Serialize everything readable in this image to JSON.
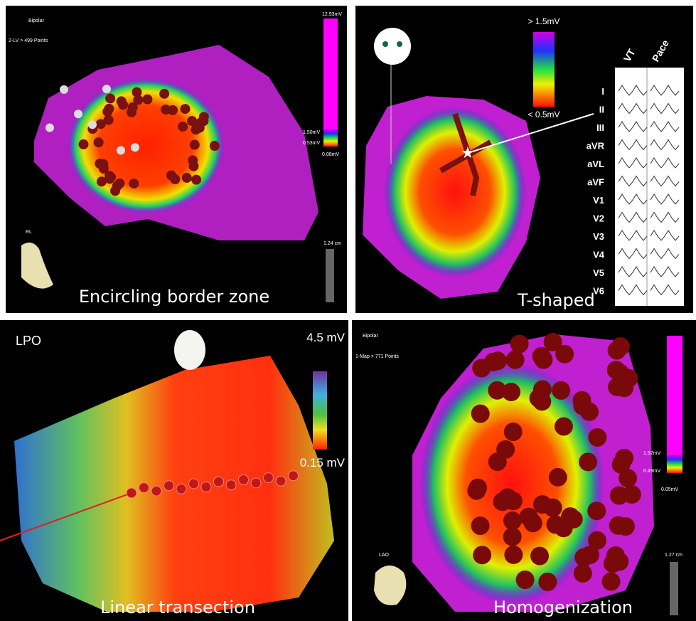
{
  "panels": [
    {
      "mode": "Bipolar",
      "points": "2-LV > 499 Points",
      "scale_max": "12.93mV",
      "scale_high": "1.50mV",
      "scale_low": "0.53mV",
      "scale_min": "0.08mV",
      "view": "RL",
      "ruler": "1.24 cm",
      "caption": "Encircling border zone"
    },
    {
      "scale_high": "> 1.5mV",
      "scale_low": "< 0.5mV",
      "ecg_columns": [
        "VT",
        "Pace"
      ],
      "leads": [
        "I",
        "II",
        "III",
        "aVR",
        "aVL",
        "aVF",
        "V1",
        "V2",
        "V3",
        "V4",
        "V5",
        "V6"
      ],
      "caption": "T-shaped"
    },
    {
      "view": "LPO",
      "scale_high": "4.5 mV",
      "scale_low": "0.15 mV",
      "caption": "Linear transection"
    },
    {
      "mode": "Bipolar",
      "points": "1-Map > 771 Points",
      "scale_high": "1.52mV",
      "scale_low": "0.49mV",
      "scale_min": "0.05mV",
      "view": "LAO",
      "ruler": "1.27 cm",
      "caption": "Homogenization"
    }
  ]
}
